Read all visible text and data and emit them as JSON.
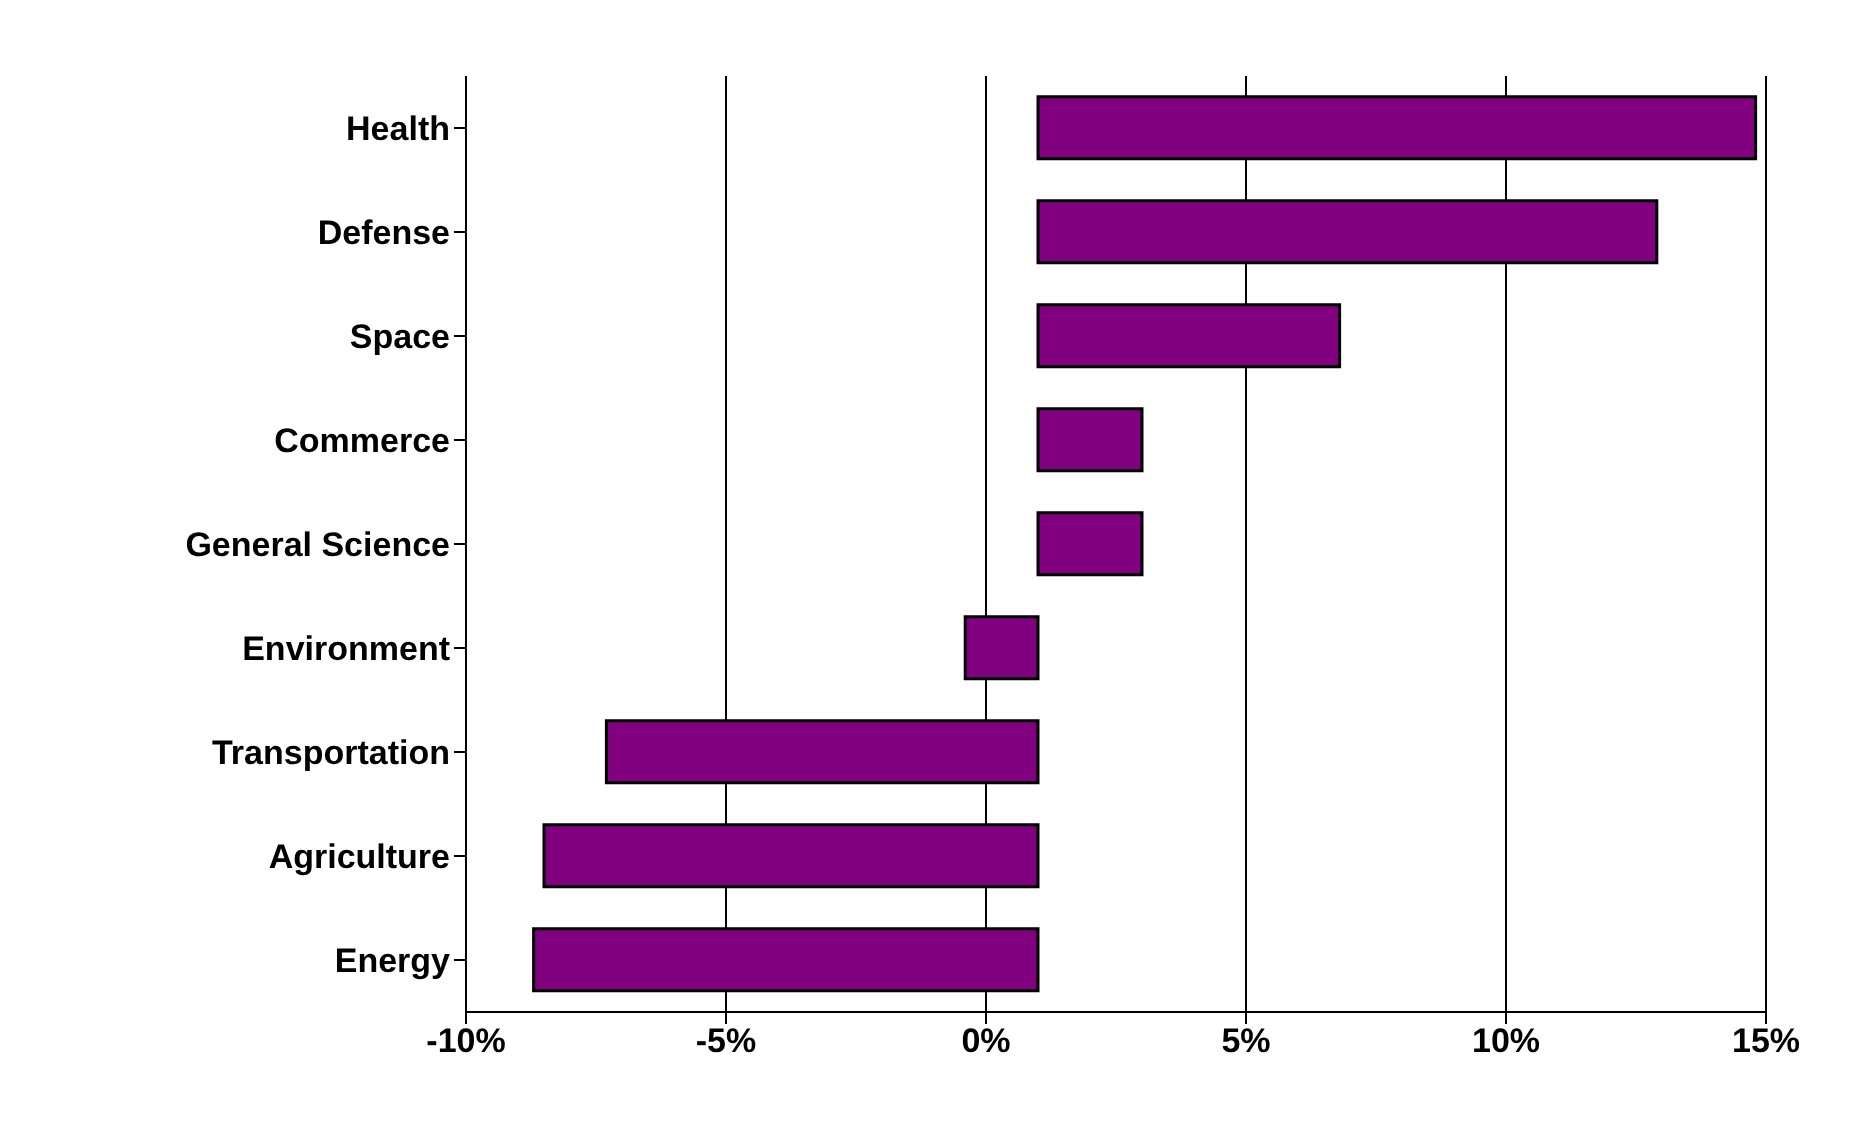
{
  "chart_data": {
    "type": "bar",
    "orientation": "horizontal",
    "categories": [
      "Health",
      "Defense",
      "Space",
      "Commerce",
      "General Science",
      "Environment",
      "Transportation",
      "Agriculture",
      "Energy"
    ],
    "values": [
      13.8,
      11.9,
      5.8,
      2.0,
      2.0,
      -1.4,
      -8.3,
      -9.5,
      -9.7
    ],
    "base": [
      1,
      1,
      1,
      1,
      1,
      1,
      1,
      1,
      1
    ],
    "color": "#800080",
    "xlim": [
      -10,
      15
    ],
    "xticks": [
      {
        "value": -10,
        "label": "-10%"
      },
      {
        "value": -5,
        "label": "-5%"
      },
      {
        "value": 0,
        "label": "0%"
      },
      {
        "value": 5,
        "label": "5%"
      },
      {
        "value": 10,
        "label": "10%"
      },
      {
        "value": 15,
        "label": "15%"
      }
    ],
    "grid": "x",
    "legend": false
  }
}
